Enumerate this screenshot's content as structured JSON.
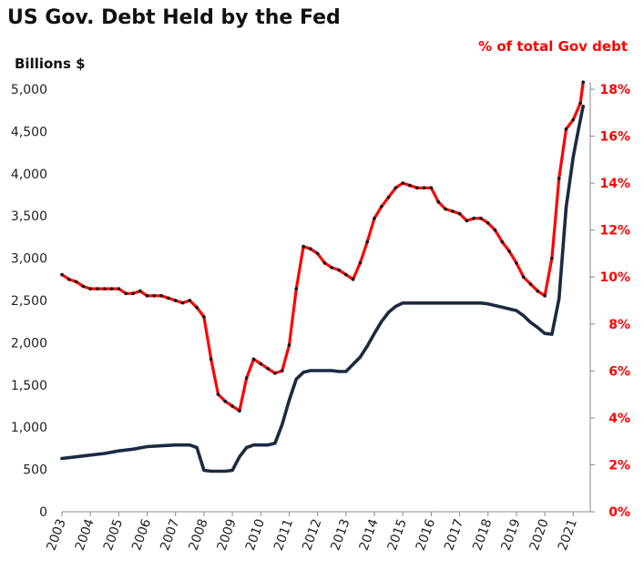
{
  "chart_data": {
    "type": "line",
    "title": "US Gov. Debt Held by the Fed",
    "ylabel": "Billions  $",
    "y2label": "% of total Gov debt",
    "ylim": [
      0,
      5000
    ],
    "y2lim": [
      0,
      18
    ],
    "yticks": [
      0,
      500,
      1000,
      1500,
      2000,
      2500,
      3000,
      3500,
      4000,
      4500,
      5000
    ],
    "yticklabels": [
      "0",
      "500",
      "1,000",
      "1,500",
      "2,000",
      "2,500",
      "3,000",
      "3,500",
      "4,000",
      "4,500",
      "5,000"
    ],
    "y2ticks": [
      0,
      2,
      4,
      6,
      8,
      10,
      12,
      14,
      16,
      18
    ],
    "y2ticklabels": [
      "0%",
      "2%",
      "4%",
      "6%",
      "8%",
      "10%",
      "12%",
      "14%",
      "16%",
      "18%"
    ],
    "xlim": [
      2003,
      2021.6
    ],
    "xticks": [
      2003,
      2004,
      2005,
      2006,
      2007,
      2008,
      2009,
      2010,
      2011,
      2012,
      2013,
      2014,
      2015,
      2016,
      2017,
      2018,
      2019,
      2020,
      2021
    ],
    "colors": {
      "billions": "#1b2a41",
      "pct": "#ff0000",
      "pct_markers": "#1a1a1a",
      "title": "#111111",
      "right_axis": "#ff0000"
    },
    "series": [
      {
        "key": "billions",
        "axis": "left",
        "x": [
          2003,
          2003.5,
          2004,
          2004.5,
          2005,
          2005.5,
          2006,
          2006.5,
          2007,
          2007.25,
          2007.5,
          2007.75,
          2008,
          2008.25,
          2008.5,
          2008.75,
          2009,
          2009.25,
          2009.5,
          2009.75,
          2010,
          2010.25,
          2010.5,
          2010.75,
          2011,
          2011.25,
          2011.5,
          2011.75,
          2012,
          2012.5,
          2012.75,
          2013,
          2013.5,
          2013.75,
          2014,
          2014.25,
          2014.5,
          2014.75,
          2015,
          2015.5,
          2016,
          2016.5,
          2017,
          2017.5,
          2017.75,
          2018,
          2018.5,
          2019,
          2019.25,
          2019.5,
          2019.75,
          2020,
          2020.25,
          2020.5,
          2020.75,
          2021,
          2021.2,
          2021.35
        ],
        "values": [
          630,
          650,
          670,
          690,
          720,
          740,
          770,
          780,
          790,
          790,
          790,
          760,
          490,
          480,
          480,
          480,
          490,
          650,
          760,
          790,
          790,
          790,
          810,
          1030,
          1320,
          1570,
          1650,
          1670,
          1670,
          1670,
          1660,
          1660,
          1830,
          1960,
          2110,
          2250,
          2360,
          2430,
          2470,
          2470,
          2470,
          2470,
          2470,
          2470,
          2470,
          2460,
          2420,
          2380,
          2320,
          2240,
          2180,
          2110,
          2100,
          2520,
          3600,
          4200,
          4550,
          4800
        ]
      },
      {
        "key": "pct",
        "axis": "right",
        "x": [
          2003,
          2003.25,
          2003.5,
          2003.75,
          2004,
          2004.25,
          2004.5,
          2004.75,
          2005,
          2005.25,
          2005.5,
          2005.75,
          2006,
          2006.25,
          2006.5,
          2006.75,
          2007,
          2007.25,
          2007.5,
          2007.75,
          2008,
          2008.25,
          2008.5,
          2008.75,
          2009,
          2009.25,
          2009.5,
          2009.75,
          2010,
          2010.25,
          2010.5,
          2010.75,
          2011,
          2011.25,
          2011.5,
          2011.75,
          2012,
          2012.25,
          2012.5,
          2012.75,
          2013,
          2013.25,
          2013.5,
          2013.75,
          2014,
          2014.25,
          2014.5,
          2014.75,
          2015,
          2015.25,
          2015.5,
          2015.75,
          2016,
          2016.25,
          2016.5,
          2016.75,
          2017,
          2017.25,
          2017.5,
          2017.75,
          2018,
          2018.25,
          2018.5,
          2018.75,
          2019,
          2019.25,
          2019.5,
          2019.75,
          2020,
          2020.25,
          2020.5,
          2020.75,
          2021,
          2021.25,
          2021.35
        ],
        "values": [
          10.1,
          9.9,
          9.8,
          9.6,
          9.5,
          9.5,
          9.5,
          9.5,
          9.5,
          9.3,
          9.3,
          9.4,
          9.2,
          9.2,
          9.2,
          9.1,
          9.0,
          8.9,
          9.0,
          8.7,
          8.3,
          6.5,
          5.0,
          4.7,
          4.5,
          4.3,
          5.7,
          6.5,
          6.3,
          6.1,
          5.9,
          6.0,
          7.1,
          9.5,
          11.3,
          11.2,
          11.0,
          10.6,
          10.4,
          10.3,
          10.1,
          9.9,
          10.6,
          11.5,
          12.5,
          13.0,
          13.4,
          13.8,
          14.0,
          13.9,
          13.8,
          13.8,
          13.8,
          13.2,
          12.9,
          12.8,
          12.7,
          12.4,
          12.5,
          12.5,
          12.3,
          12.0,
          11.5,
          11.1,
          10.6,
          10.0,
          9.7,
          9.4,
          9.2,
          10.8,
          14.2,
          16.3,
          16.7,
          17.4,
          18.3
        ]
      }
    ]
  }
}
